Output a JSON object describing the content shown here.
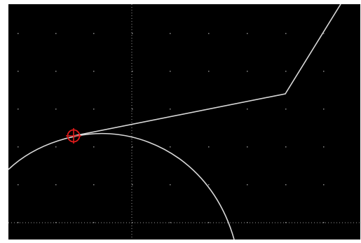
{
  "canvas": {
    "background_color": "#000000",
    "grid_dot_color": "#8a8a8a",
    "crosshair_color": "#9a9a9a",
    "geometry_color": "#d8d8d8",
    "snap_marker_color": "#e01b1b"
  },
  "grid": {
    "visible": true
  },
  "crosshair": {
    "visible": true,
    "style": "dotted"
  },
  "geometry": {
    "polyline": "visible",
    "arc": "visible"
  },
  "snap_marker": {
    "icon": "crosshair-circle-icon",
    "visible": true
  }
}
